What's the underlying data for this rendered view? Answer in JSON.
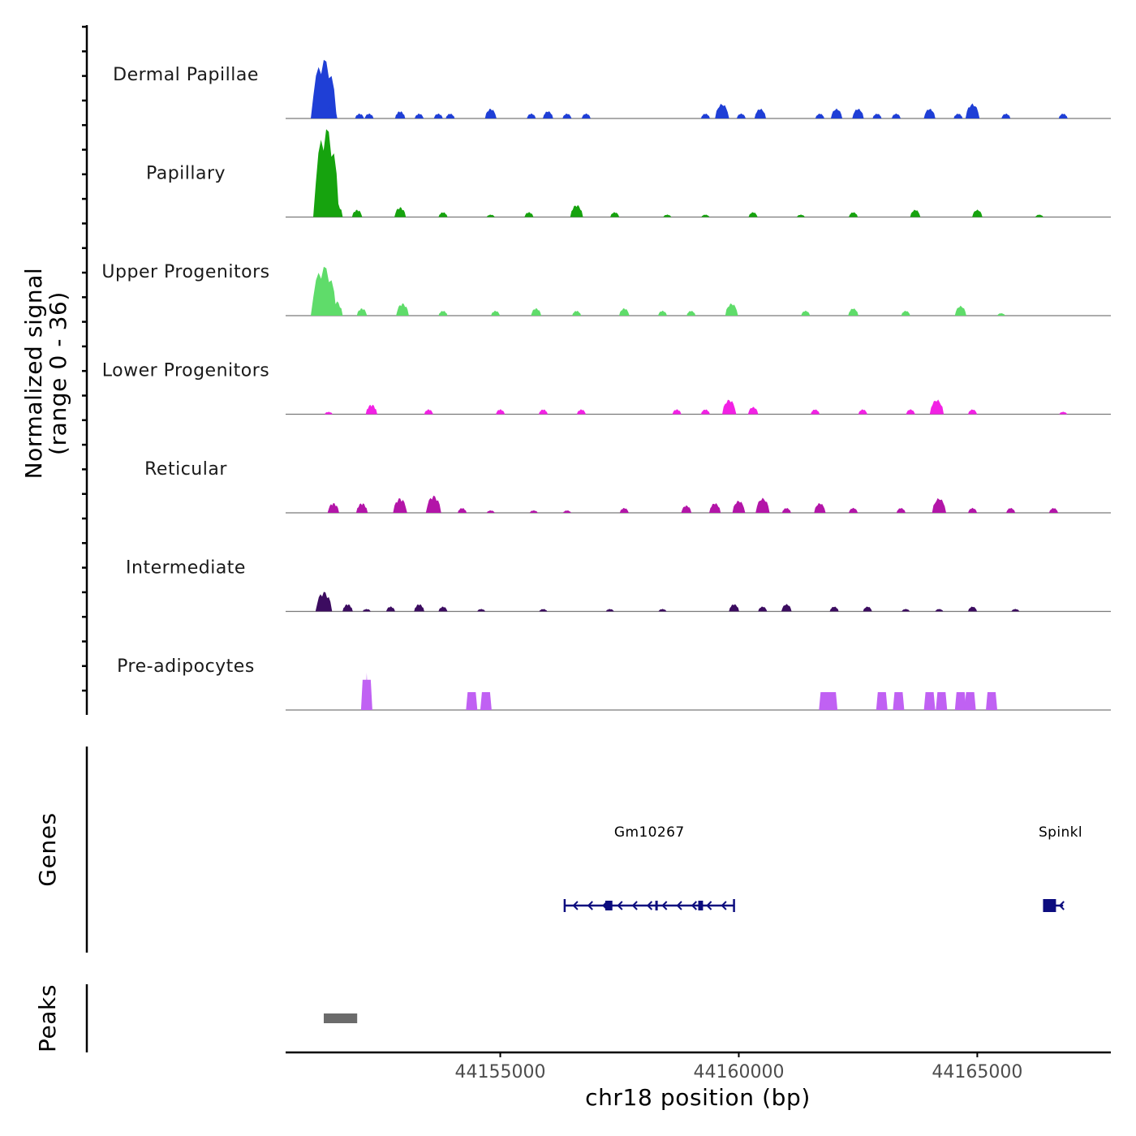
{
  "chart_data": {
    "type": "area",
    "title": "",
    "chromosome": "chr18",
    "xlabel": "chr18 position (bp)",
    "ylabel": "Normalized signal\n(range 0 - 36)",
    "ylabel_line1": "Normalized signal",
    "ylabel_line2": "(range 0 - 36)",
    "xlim": [
      44150500,
      44167800
    ],
    "ylim": [
      0,
      36
    ],
    "x_ticks": [
      44155000,
      44160000,
      44165000
    ],
    "x_tick_labels": [
      "44155000",
      "44160000",
      "44165000"
    ],
    "series": [
      {
        "name": "Dermal Papillae",
        "color": "#1f3fd6",
        "points": [
          [
            44151300,
            24
          ],
          [
            44151450,
            5
          ],
          [
            44152050,
            2
          ],
          [
            44152250,
            2
          ],
          [
            44152900,
            3
          ],
          [
            44153300,
            2
          ],
          [
            44153700,
            2
          ],
          [
            44153950,
            2
          ],
          [
            44154800,
            4
          ],
          [
            44155650,
            2
          ],
          [
            44156000,
            3
          ],
          [
            44156400,
            2
          ],
          [
            44156800,
            2
          ],
          [
            44159300,
            2
          ],
          [
            44159650,
            6
          ],
          [
            44160050,
            2
          ],
          [
            44160450,
            4
          ],
          [
            44161700,
            2
          ],
          [
            44162050,
            4
          ],
          [
            44162500,
            4
          ],
          [
            44162900,
            2
          ],
          [
            44163300,
            2
          ],
          [
            44164000,
            4
          ],
          [
            44164600,
            2
          ],
          [
            44164900,
            6
          ],
          [
            44165600,
            2
          ],
          [
            44166800,
            2
          ]
        ]
      },
      {
        "name": "Papillary",
        "color": "#16a30e",
        "points": [
          [
            44151350,
            36
          ],
          [
            44151550,
            6
          ],
          [
            44152000,
            3
          ],
          [
            44152900,
            4
          ],
          [
            44153800,
            2
          ],
          [
            44154800,
            1
          ],
          [
            44155600,
            2
          ],
          [
            44156600,
            5
          ],
          [
            44157400,
            2
          ],
          [
            44158500,
            1
          ],
          [
            44159300,
            1
          ],
          [
            44160300,
            2
          ],
          [
            44161300,
            1
          ],
          [
            44162400,
            2
          ],
          [
            44163700,
            3
          ],
          [
            44165000,
            3
          ],
          [
            44166300,
            1
          ]
        ]
      },
      {
        "name": "Upper Progenitors",
        "color": "#5fdc6a",
        "points": [
          [
            44151300,
            20
          ],
          [
            44151550,
            6
          ],
          [
            44152100,
            3
          ],
          [
            44152950,
            5
          ],
          [
            44153800,
            2
          ],
          [
            44154900,
            2
          ],
          [
            44155750,
            3
          ],
          [
            44156600,
            2
          ],
          [
            44157600,
            3
          ],
          [
            44158400,
            2
          ],
          [
            44159000,
            2
          ],
          [
            44159850,
            5
          ],
          [
            44161400,
            2
          ],
          [
            44162400,
            3
          ],
          [
            44163500,
            2
          ],
          [
            44164650,
            4
          ],
          [
            44165500,
            1
          ]
        ]
      },
      {
        "name": "Lower Progenitors",
        "color": "#f221e4",
        "points": [
          [
            44151400,
            1
          ],
          [
            44152300,
            4
          ],
          [
            44153500,
            2
          ],
          [
            44155000,
            2
          ],
          [
            44155900,
            2
          ],
          [
            44156700,
            2
          ],
          [
            44158700,
            2
          ],
          [
            44159300,
            2
          ],
          [
            44159800,
            6
          ],
          [
            44160300,
            3
          ],
          [
            44161600,
            2
          ],
          [
            44162600,
            2
          ],
          [
            44163600,
            2
          ],
          [
            44164150,
            6
          ],
          [
            44164900,
            2
          ],
          [
            44166800,
            1
          ]
        ]
      },
      {
        "name": "Reticular",
        "color": "#b315a8",
        "points": [
          [
            44151500,
            4
          ],
          [
            44152100,
            4
          ],
          [
            44152900,
            6
          ],
          [
            44153600,
            7
          ],
          [
            44154200,
            2
          ],
          [
            44154800,
            1
          ],
          [
            44155700,
            1
          ],
          [
            44156400,
            1
          ],
          [
            44157600,
            2
          ],
          [
            44158900,
            3
          ],
          [
            44159500,
            4
          ],
          [
            44160000,
            5
          ],
          [
            44160500,
            6
          ],
          [
            44161000,
            2
          ],
          [
            44161700,
            4
          ],
          [
            44162400,
            2
          ],
          [
            44163400,
            2
          ],
          [
            44164200,
            6
          ],
          [
            44164900,
            2
          ],
          [
            44165700,
            2
          ],
          [
            44166600,
            2
          ]
        ]
      },
      {
        "name": "Intermediate",
        "color": "#3c0c60",
        "points": [
          [
            44151300,
            8
          ],
          [
            44151800,
            3
          ],
          [
            44152200,
            1
          ],
          [
            44152700,
            2
          ],
          [
            44153300,
            3
          ],
          [
            44153800,
            2
          ],
          [
            44154600,
            1
          ],
          [
            44155900,
            1
          ],
          [
            44157300,
            1
          ],
          [
            44158400,
            1
          ],
          [
            44159900,
            3
          ],
          [
            44160500,
            2
          ],
          [
            44161000,
            3
          ],
          [
            44162000,
            2
          ],
          [
            44162700,
            2
          ],
          [
            44163500,
            1
          ],
          [
            44164200,
            1
          ],
          [
            44164900,
            2
          ],
          [
            44165800,
            1
          ]
        ]
      },
      {
        "name": "Pre-adipocytes",
        "color": "#c061f3",
        "points": [
          [
            44152200,
            12
          ],
          [
            44154400,
            6
          ],
          [
            44154700,
            6
          ],
          [
            44161800,
            6
          ],
          [
            44161950,
            6
          ],
          [
            44163000,
            6
          ],
          [
            44163350,
            6
          ],
          [
            44164000,
            6
          ],
          [
            44164250,
            6
          ],
          [
            44164650,
            6
          ],
          [
            44164850,
            6
          ],
          [
            44165300,
            6
          ]
        ]
      }
    ],
    "genes": [
      {
        "name": "Gm10267",
        "start": 44156350,
        "end": 44159900,
        "strand": "-",
        "exons": [
          [
            44157200,
            44157350
          ],
          [
            44158250,
            44158300
          ],
          [
            44159150,
            44159250
          ]
        ],
        "color": "#0d0d7f"
      },
      {
        "name": "Spinkl",
        "start": 44166400,
        "end": 44166800,
        "strand": "-",
        "exons": [
          [
            44166400,
            44166650
          ]
        ],
        "color": "#0d0d7f"
      }
    ],
    "genes_track_label": "Genes",
    "peaks_track_label": "Peaks",
    "peaks": [
      {
        "start": 44151300,
        "end": 44152000,
        "color": "#6b6b6b"
      }
    ]
  }
}
